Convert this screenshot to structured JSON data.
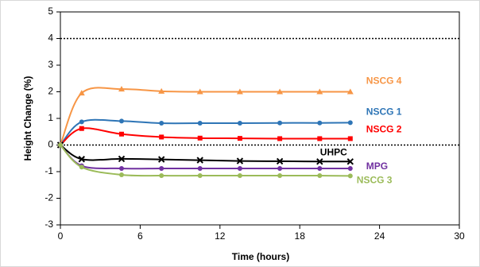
{
  "chart_data": {
    "type": "line",
    "x_label": "Time (hours)",
    "y_label": "Height Change (%)",
    "x": [
      0,
      1.6,
      4.6,
      7.6,
      10.5,
      13.5,
      16.5,
      19.5,
      21.8
    ],
    "series": [
      {
        "name": "NSCG 4",
        "color": "#f79646",
        "marker": "triangle",
        "values": [
          0,
          1.95,
          2.1,
          2.02,
          2.0,
          2.0,
          2.0,
          2.0,
          2.0
        ]
      },
      {
        "name": "NSCG 1",
        "color": "#2e75b6",
        "marker": "circle",
        "values": [
          0,
          0.87,
          0.9,
          0.82,
          0.82,
          0.82,
          0.83,
          0.83,
          0.84
        ]
      },
      {
        "name": "NSCG 2",
        "color": "#ff0000",
        "marker": "square",
        "values": [
          0,
          0.62,
          0.41,
          0.3,
          0.26,
          0.25,
          0.24,
          0.24,
          0.24
        ]
      },
      {
        "name": "UHPC",
        "color": "#000000",
        "marker": "cross",
        "values": [
          0,
          -0.53,
          -0.52,
          -0.54,
          -0.57,
          -0.6,
          -0.61,
          -0.62,
          -0.62
        ]
      },
      {
        "name": "MPG",
        "color": "#7030a0",
        "marker": "circle",
        "values": [
          0,
          -0.78,
          -0.88,
          -0.88,
          -0.88,
          -0.88,
          -0.88,
          -0.88,
          -0.88
        ]
      },
      {
        "name": "NSCG 3",
        "color": "#9bbb59",
        "marker": "circle",
        "values": [
          0,
          -0.83,
          -1.12,
          -1.15,
          -1.15,
          -1.15,
          -1.15,
          -1.15,
          -1.16
        ]
      }
    ],
    "xlim": [
      0,
      30
    ],
    "xticks": [
      0,
      6,
      12,
      18,
      24,
      30
    ],
    "ylim": [
      -3,
      5
    ],
    "yticks": [
      -3,
      -2,
      -1,
      0,
      1,
      2,
      3,
      4,
      5
    ],
    "reference_lines": [
      4,
      0
    ]
  }
}
